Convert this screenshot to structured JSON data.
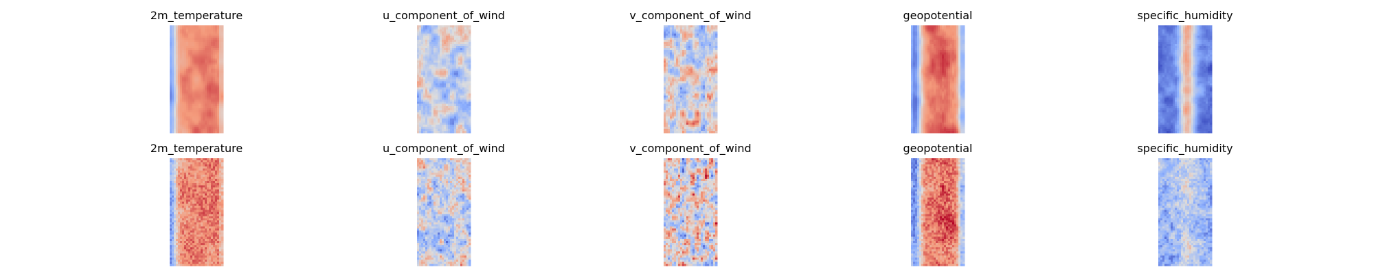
{
  "figure": {
    "rows": 2,
    "cols": 5
  },
  "chart_data": {
    "type": "heatmap",
    "colormap": "coolwarm",
    "colormap_colors": [
      "#3b4cc0",
      "#dddddd",
      "#b40426"
    ],
    "axes_visible": false,
    "panels": [
      {
        "row": 0,
        "col": 0,
        "title": "2m_temperature",
        "pattern": "temperature"
      },
      {
        "row": 0,
        "col": 1,
        "title": "u_component_of_wind",
        "pattern": "u_wind"
      },
      {
        "row": 0,
        "col": 2,
        "title": "v_component_of_wind",
        "pattern": "v_wind"
      },
      {
        "row": 0,
        "col": 3,
        "title": "geopotential",
        "pattern": "geopotential"
      },
      {
        "row": 0,
        "col": 4,
        "title": "specific_humidity",
        "pattern": "humidity"
      },
      {
        "row": 1,
        "col": 0,
        "title": "2m_temperature",
        "pattern": "temperature_noisy"
      },
      {
        "row": 1,
        "col": 1,
        "title": "u_component_of_wind",
        "pattern": "u_wind_noisy"
      },
      {
        "row": 1,
        "col": 2,
        "title": "v_component_of_wind",
        "pattern": "v_wind_noisy"
      },
      {
        "row": 1,
        "col": 3,
        "title": "geopotential",
        "pattern": "geopotential_noisy"
      },
      {
        "row": 1,
        "col": 4,
        "title": "specific_humidity",
        "pattern": "humidity_noisy"
      }
    ]
  }
}
